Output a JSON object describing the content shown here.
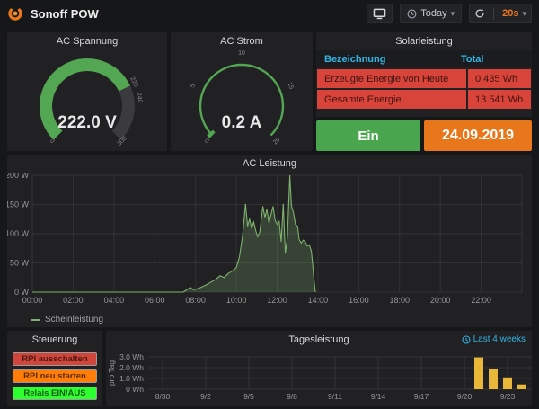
{
  "header": {
    "title": "Sonoff POW",
    "time_range": "Today",
    "refresh_interval": "20s"
  },
  "icons": {
    "caret": "▾",
    "names": [
      "grafana-logo",
      "tv-icon",
      "clock-icon",
      "refresh-icon"
    ]
  },
  "colors": {
    "accent_blue": "#33b5e5",
    "table_row_red": "#d9443a",
    "relay_green": "#4aa64e",
    "date_orange": "#e8761b",
    "series_green": "#7eb26d",
    "bar_yellow": "#eab839"
  },
  "panels": {
    "gauge_voltage": {
      "title": "AC Spannung"
    },
    "gauge_current": {
      "title": "AC Strom"
    },
    "solar": {
      "title": "Solarleistung",
      "columns": [
        "Bezeichnung",
        "Total"
      ],
      "rows": [
        {
          "label": "Erzeugte Energie von Heute",
          "value": "0.435 Wh"
        },
        {
          "label": "Gesamte Energie",
          "value": "13.541 Wh"
        }
      ]
    },
    "relay": {
      "label": "Ein"
    },
    "date": {
      "value": "24.09.2019"
    },
    "power": {
      "title": "AC Leistung",
      "legend": "Scheinleistung"
    },
    "steuerung": {
      "title": "Steuerung",
      "buttons": [
        {
          "label": "RPI ausschalten",
          "color": "#d0463a"
        },
        {
          "label": "RPI neu starten",
          "color": "#ff7d09"
        },
        {
          "label": "Relais EIN/AUS",
          "color": "#2eff2e"
        }
      ]
    },
    "daily": {
      "title": "Tagesleistung",
      "link_label": "Last 4 weeks"
    }
  },
  "chart_data": [
    {
      "type": "gauge",
      "title": "AC Spannung",
      "min": 0,
      "max": 300,
      "value": 222.0,
      "display": "222.0 V",
      "scale_labels": [
        0,
        220,
        240,
        300
      ],
      "color": "#53a652",
      "style": "filled"
    },
    {
      "type": "gauge",
      "title": "AC Strom",
      "min": 0,
      "max": 20,
      "value": 0.2,
      "display": "0.2 A",
      "scale_labels": [
        0,
        5,
        10,
        15,
        20
      ],
      "color": "#53a652",
      "style": "thin"
    },
    {
      "type": "area",
      "title": "AC Leistung",
      "x_ticks": [
        "00:00",
        "02:00",
        "04:00",
        "06:00",
        "08:00",
        "10:00",
        "12:00",
        "14:00",
        "16:00",
        "18:00",
        "20:00",
        "22:00"
      ],
      "x_range_hours": [
        0,
        24
      ],
      "y_ticks": [
        {
          "v": 0,
          "label": "0 W"
        },
        {
          "v": 50,
          "label": "50 W"
        },
        {
          "v": 100,
          "label": "100 W"
        },
        {
          "v": 150,
          "label": "150 W"
        },
        {
          "v": 200,
          "label": "200 W"
        }
      ],
      "ylim": [
        0,
        200
      ],
      "grid": true,
      "legend_position": "bottom-left",
      "series": [
        {
          "name": "Scheinleistung",
          "color": "#7eb26d",
          "fill_opacity": 0.24,
          "points": [
            [
              0,
              0
            ],
            [
              7.4,
              0
            ],
            [
              7.6,
              5
            ],
            [
              7.75,
              8
            ],
            [
              7.9,
              4
            ],
            [
              8.2,
              7
            ],
            [
              8.5,
              12
            ],
            [
              8.8,
              18
            ],
            [
              9.0,
              22
            ],
            [
              9.2,
              28
            ],
            [
              9.4,
              25
            ],
            [
              9.6,
              32
            ],
            [
              9.8,
              36
            ],
            [
              10.0,
              42
            ],
            [
              10.15,
              60
            ],
            [
              10.3,
              95
            ],
            [
              10.45,
              151
            ],
            [
              10.55,
              113
            ],
            [
              10.65,
              125
            ],
            [
              10.75,
              110
            ],
            [
              10.85,
              120
            ],
            [
              10.95,
              105
            ],
            [
              11.05,
              95
            ],
            [
              11.15,
              103
            ],
            [
              11.3,
              147
            ],
            [
              11.4,
              128
            ],
            [
              11.5,
              142
            ],
            [
              11.6,
              118
            ],
            [
              11.7,
              133
            ],
            [
              11.8,
              147
            ],
            [
              11.9,
              123
            ],
            [
              12.0,
              116
            ],
            [
              12.1,
              121
            ],
            [
              12.2,
              86
            ],
            [
              12.3,
              151
            ],
            [
              12.4,
              66
            ],
            [
              12.5,
              94
            ],
            [
              12.62,
              200
            ],
            [
              12.7,
              148
            ],
            [
              12.8,
              136
            ],
            [
              12.9,
              116
            ],
            [
              13.0,
              113
            ],
            [
              13.08,
              90
            ],
            [
              13.18,
              84
            ],
            [
              13.28,
              89
            ],
            [
              13.38,
              86
            ],
            [
              13.48,
              79
            ],
            [
              13.58,
              81
            ],
            [
              13.68,
              70
            ],
            [
              13.75,
              45
            ],
            [
              13.82,
              18
            ],
            [
              13.87,
              0
            ]
          ]
        }
      ]
    },
    {
      "type": "bar",
      "title": "Tagesleistung",
      "ylabel": "pro Tag",
      "ylim": [
        0,
        3.2
      ],
      "y_ticks": [
        {
          "v": 0,
          "label": "0 Wh"
        },
        {
          "v": 1,
          "label": "1.0 Wh"
        },
        {
          "v": 2,
          "label": "2.0 Wh"
        },
        {
          "v": 3,
          "label": "3.0 Wh"
        }
      ],
      "x_ticks": [
        "8/30",
        "9/2",
        "9/5",
        "9/8",
        "9/11",
        "9/14",
        "9/17",
        "9/20",
        "9/23"
      ],
      "x_range_dates": [
        "8/29",
        "9/25"
      ],
      "bar_color": "#eab839",
      "bars": [
        {
          "date": "9/21",
          "value": 2.95
        },
        {
          "date": "9/22",
          "value": 1.9
        },
        {
          "date": "9/23",
          "value": 1.1
        },
        {
          "date": "9/24",
          "value": 0.44
        }
      ],
      "grid": true,
      "link_label": "Last 4 weeks"
    }
  ]
}
